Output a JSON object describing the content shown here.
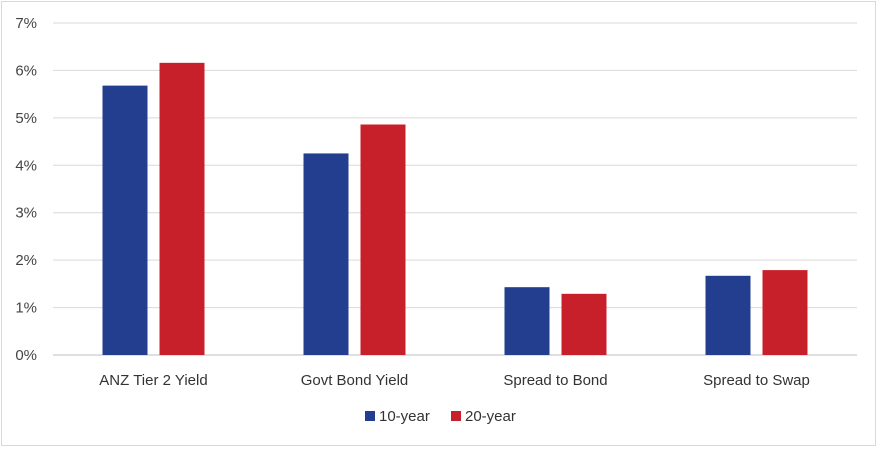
{
  "chart_data": {
    "type": "bar",
    "categories": [
      "ANZ Tier 2 Yield",
      "Govt Bond Yield",
      "Spread to Bond",
      "Spread to Swap"
    ],
    "series": [
      {
        "name": "10-year",
        "color": "#233E8E",
        "values": [
          5.68,
          4.25,
          1.43,
          1.67
        ]
      },
      {
        "name": "20-year",
        "color": "#C8202B",
        "values": [
          6.16,
          4.86,
          1.29,
          1.79
        ]
      }
    ],
    "y_ticks": [
      "0%",
      "1%",
      "2%",
      "3%",
      "4%",
      "5%",
      "6%",
      "7%"
    ],
    "ylim": [
      0,
      7
    ],
    "grid": true,
    "legend_position": "bottom-center"
  }
}
